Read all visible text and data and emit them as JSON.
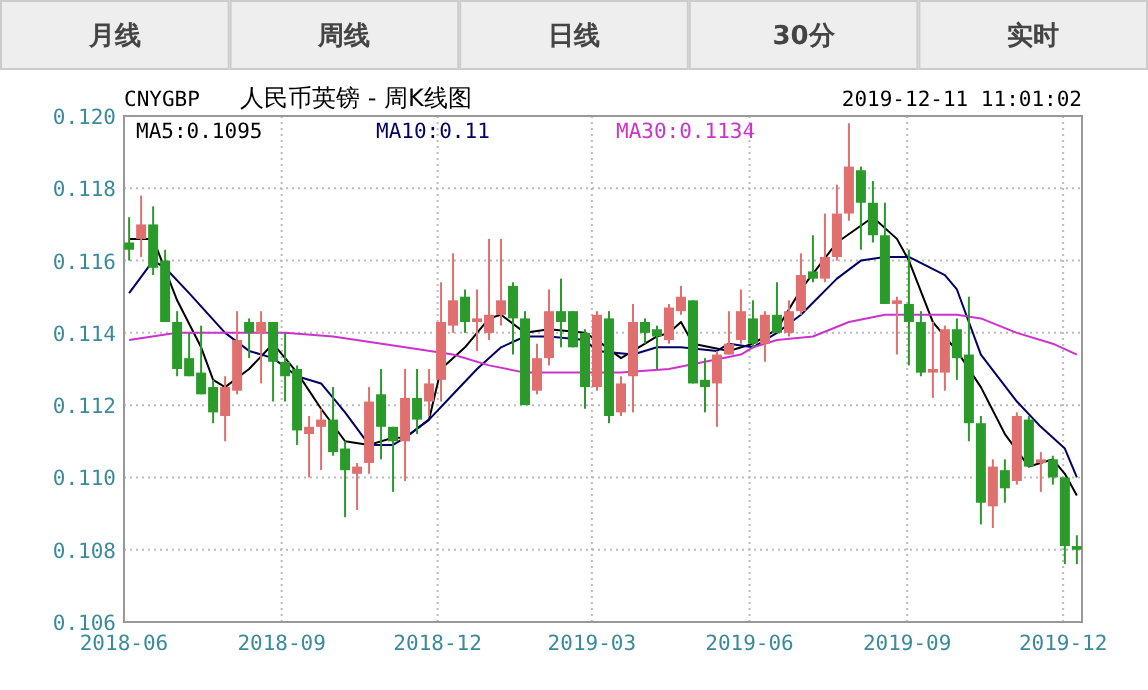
{
  "chart_data": {
    "type": "candlestick",
    "title": "人民币英镑 - 周K线图",
    "annotations": [
      "CNYGBP",
      "2019-12-11 11:01:02",
      "月线",
      "周线",
      "日线",
      "30分",
      "实时"
    ],
    "xlim": [
      "2018-06-01",
      "2019-12-12"
    ],
    "xticks": [
      {
        "value": "2018-06-01",
        "label": "2018-06"
      },
      {
        "value": "2018-09-01",
        "label": "2018-09"
      },
      {
        "value": "2018-12-01",
        "label": "2018-12"
      },
      {
        "value": "2019-03-01",
        "label": "2019-03"
      },
      {
        "value": "2019-06-01",
        "label": "2019-06"
      },
      {
        "value": "2019-09-01",
        "label": "2019-09"
      },
      {
        "value": "2019-12-01",
        "label": "2019-12"
      }
    ],
    "ylim": [
      0.106,
      0.12
    ],
    "yticks": [
      0.106,
      0.108,
      {
        "value": 0.11,
        "label": "0.110"
      },
      0.112,
      0.114,
      0.116,
      0.118,
      {
        "value": 0.12,
        "label": "0.120"
      }
    ],
    "grid": true,
    "legend": "top",
    "x": [
      "2018-06-04",
      "2018-06-11",
      "2018-06-18",
      "2018-06-25",
      "2018-07-02",
      "2018-07-09",
      "2018-07-16",
      "2018-07-23",
      "2018-07-30",
      "2018-08-06",
      "2018-08-13",
      "2018-08-20",
      "2018-08-27",
      "2018-09-03",
      "2018-09-10",
      "2018-09-17",
      "2018-09-24",
      "2018-10-01",
      "2018-10-08",
      "2018-10-15",
      "2018-10-22",
      "2018-10-29",
      "2018-11-05",
      "2018-11-12",
      "2018-11-19",
      "2018-11-26",
      "2018-12-03",
      "2018-12-10",
      "2018-12-17",
      "2018-12-24",
      "2018-12-31",
      "2019-01-07",
      "2019-01-14",
      "2019-01-21",
      "2019-01-28",
      "2019-02-04",
      "2019-02-11",
      "2019-02-18",
      "2019-02-25",
      "2019-03-04",
      "2019-03-11",
      "2019-03-18",
      "2019-03-25",
      "2019-04-01",
      "2019-04-08",
      "2019-04-15",
      "2019-04-22",
      "2019-04-29",
      "2019-05-06",
      "2019-05-13",
      "2019-05-20",
      "2019-05-27",
      "2019-06-03",
      "2019-06-10",
      "2019-06-17",
      "2019-06-24",
      "2019-07-01",
      "2019-07-08",
      "2019-07-15",
      "2019-07-22",
      "2019-07-29",
      "2019-08-05",
      "2019-08-12",
      "2019-08-19",
      "2019-08-26",
      "2019-09-02",
      "2019-09-09",
      "2019-09-16",
      "2019-09-23",
      "2019-09-30",
      "2019-10-07",
      "2019-10-14",
      "2019-10-21",
      "2019-10-28",
      "2019-11-04",
      "2019-11-11",
      "2019-11-18",
      "2019-11-25",
      "2019-12-02",
      "2019-12-09"
    ],
    "ohlc": [
      [
        0.1165,
        0.1172,
        0.116,
        0.1163
      ],
      [
        0.1166,
        0.1178,
        0.1161,
        0.117
      ],
      [
        0.117,
        0.1175,
        0.1156,
        0.1158
      ],
      [
        0.116,
        0.1163,
        0.1143,
        0.1143
      ],
      [
        0.1143,
        0.1146,
        0.1128,
        0.113
      ],
      [
        0.1133,
        0.114,
        0.1128,
        0.1128
      ],
      [
        0.1129,
        0.1142,
        0.1123,
        0.1123
      ],
      [
        0.1125,
        0.1127,
        0.1115,
        0.1118
      ],
      [
        0.1117,
        0.1128,
        0.111,
        0.1125
      ],
      [
        0.1124,
        0.1146,
        0.1123,
        0.1138
      ],
      [
        0.1143,
        0.1144,
        0.1133,
        0.114
      ],
      [
        0.114,
        0.1146,
        0.1126,
        0.1143
      ],
      [
        0.1143,
        0.1143,
        0.1121,
        0.1132
      ],
      [
        0.1132,
        0.114,
        0.1121,
        0.1128
      ],
      [
        0.113,
        0.1131,
        0.1109,
        0.1113
      ],
      [
        0.1112,
        0.1117,
        0.11,
        0.1114
      ],
      [
        0.1114,
        0.1119,
        0.1102,
        0.1116
      ],
      [
        0.1116,
        0.1125,
        0.1106,
        0.1107
      ],
      [
        0.1108,
        0.111,
        0.1089,
        0.1102
      ],
      [
        0.1101,
        0.1104,
        0.1091,
        0.1103
      ],
      [
        0.1104,
        0.1125,
        0.1101,
        0.1121
      ],
      [
        0.1123,
        0.113,
        0.1105,
        0.1114
      ],
      [
        0.1114,
        0.1114,
        0.1096,
        0.111
      ],
      [
        0.111,
        0.113,
        0.1099,
        0.1122
      ],
      [
        0.1122,
        0.113,
        0.1112,
        0.1116
      ],
      [
        0.1121,
        0.113,
        0.1117,
        0.1126
      ],
      [
        0.1127,
        0.1154,
        0.1121,
        0.1143
      ],
      [
        0.1142,
        0.1162,
        0.114,
        0.1149
      ],
      [
        0.115,
        0.1152,
        0.114,
        0.1143
      ],
      [
        0.1143,
        0.1152,
        0.1135,
        0.1144
      ],
      [
        0.114,
        0.1166,
        0.1138,
        0.1145
      ],
      [
        0.1145,
        0.1166,
        0.1142,
        0.1149
      ],
      [
        0.1153,
        0.1154,
        0.1134,
        0.1144
      ],
      [
        0.1144,
        0.1146,
        0.112,
        0.112
      ],
      [
        0.1124,
        0.1137,
        0.1123,
        0.1133
      ],
      [
        0.1133,
        0.1152,
        0.1131,
        0.1146
      ],
      [
        0.1146,
        0.1155,
        0.1136,
        0.1143
      ],
      [
        0.1146,
        0.1146,
        0.1136,
        0.1136
      ],
      [
        0.114,
        0.1141,
        0.1119,
        0.1125
      ],
      [
        0.1125,
        0.1146,
        0.1124,
        0.1145
      ],
      [
        0.1144,
        0.1146,
        0.1115,
        0.1117
      ],
      [
        0.1118,
        0.1128,
        0.1117,
        0.1126
      ],
      [
        0.1128,
        0.1148,
        0.1118,
        0.1143
      ],
      [
        0.1143,
        0.1144,
        0.1137,
        0.114
      ],
      [
        0.1141,
        0.1142,
        0.113,
        0.1139
      ],
      [
        0.1138,
        0.1148,
        0.1137,
        0.1147
      ],
      [
        0.1146,
        0.1153,
        0.1145,
        0.115
      ],
      [
        0.1149,
        0.1149,
        0.1126,
        0.1126
      ],
      [
        0.1127,
        0.1133,
        0.1118,
        0.1125
      ],
      [
        0.1126,
        0.1135,
        0.1114,
        0.1134
      ],
      [
        0.1134,
        0.1146,
        0.1134,
        0.1137
      ],
      [
        0.1138,
        0.1152,
        0.1137,
        0.1146
      ],
      [
        0.1144,
        0.1149,
        0.1136,
        0.1137
      ],
      [
        0.1137,
        0.1146,
        0.1132,
        0.1145
      ],
      [
        0.1145,
        0.1154,
        0.114,
        0.114
      ],
      [
        0.114,
        0.1149,
        0.1139,
        0.1146
      ],
      [
        0.1146,
        0.1162,
        0.1145,
        0.1156
      ],
      [
        0.1157,
        0.1167,
        0.1154,
        0.1155
      ],
      [
        0.1155,
        0.1173,
        0.1154,
        0.1161
      ],
      [
        0.1161,
        0.1181,
        0.116,
        0.1173
      ],
      [
        0.1173,
        0.1198,
        0.1171,
        0.1186
      ],
      [
        0.1185,
        0.1186,
        0.1163,
        0.1176
      ],
      [
        0.1176,
        0.1182,
        0.1165,
        0.1167
      ],
      [
        0.1167,
        0.1176,
        0.1148,
        0.1148
      ],
      [
        0.1148,
        0.115,
        0.1134,
        0.1149
      ],
      [
        0.1148,
        0.1163,
        0.1131,
        0.1143
      ],
      [
        0.1143,
        0.1146,
        0.1128,
        0.1129
      ],
      [
        0.1129,
        0.1143,
        0.1122,
        0.113
      ],
      [
        0.1129,
        0.1142,
        0.1124,
        0.1141
      ],
      [
        0.1141,
        0.1144,
        0.1127,
        0.1133
      ],
      [
        0.1134,
        0.115,
        0.111,
        0.1115
      ],
      [
        0.1115,
        0.1117,
        0.1087,
        0.1093
      ],
      [
        0.1092,
        0.1105,
        0.1086,
        0.1103
      ],
      [
        0.1102,
        0.1105,
        0.1093,
        0.1097
      ],
      [
        0.1099,
        0.1118,
        0.1098,
        0.1117
      ],
      [
        0.1116,
        0.1117,
        0.1103,
        0.1103
      ],
      [
        0.1104,
        0.1107,
        0.1096,
        0.1105
      ],
      [
        0.1105,
        0.1106,
        0.1098,
        0.11
      ],
      [
        0.11,
        0.11,
        0.1076,
        0.1081
      ],
      [
        0.1081,
        0.1084,
        0.1076,
        0.108
      ]
    ],
    "colors": [
      "#2a9a2a",
      "#e07070",
      "#2a9a2a",
      "#2a9a2a",
      "#2a9a2a",
      "#2a9a2a",
      "#2a9a2a",
      "#2a9a2a",
      "#e07070",
      "#e07070",
      "#2a9a2a",
      "#e07070",
      "#2a9a2a",
      "#2a9a2a",
      "#2a9a2a",
      "#e07070",
      "#e07070",
      "#2a9a2a",
      "#2a9a2a",
      "#e07070",
      "#e07070",
      "#2a9a2a",
      "#2a9a2a",
      "#e07070",
      "#2a9a2a",
      "#e07070",
      "#e07070",
      "#e07070",
      "#2a9a2a",
      "#e07070",
      "#e07070",
      "#e07070",
      "#2a9a2a",
      "#2a9a2a",
      "#e07070",
      "#e07070",
      "#2a9a2a",
      "#2a9a2a",
      "#2a9a2a",
      "#e07070",
      "#2a9a2a",
      "#e07070",
      "#e07070",
      "#2a9a2a",
      "#2a9a2a",
      "#e07070",
      "#e07070",
      "#2a9a2a",
      "#2a9a2a",
      "#e07070",
      "#e07070",
      "#e07070",
      "#2a9a2a",
      "#e07070",
      "#2a9a2a",
      "#e07070",
      "#e07070",
      "#2a9a2a",
      "#e07070",
      "#e07070",
      "#e07070",
      "#2a9a2a",
      "#2a9a2a",
      "#2a9a2a",
      "#e07070",
      "#2a9a2a",
      "#2a9a2a",
      "#e07070",
      "#e07070",
      "#2a9a2a",
      "#2a9a2a",
      "#2a9a2a",
      "#e07070",
      "#2a9a2a",
      "#e07070",
      "#2a9a2a",
      "#e07070",
      "#2a9a2a",
      "#2a9a2a",
      "#2a9a2a"
    ],
    "series": [
      {
        "type": "line",
        "name": "MA5:0.1095",
        "color": "#000000",
        "x": [
          "2018-06-04",
          "2018-06-18",
          "2018-07-02",
          "2018-07-16",
          "2018-07-23",
          "2018-07-30",
          "2018-08-13",
          "2018-08-27",
          "2018-09-10",
          "2018-09-24",
          "2018-10-08",
          "2018-10-22",
          "2018-11-05",
          "2018-11-12",
          "2018-11-26",
          "2018-12-03",
          "2018-12-17",
          "2018-12-31",
          "2019-01-07",
          "2019-01-21",
          "2019-02-04",
          "2019-02-25",
          "2019-03-04",
          "2019-03-18",
          "2019-04-01",
          "2019-04-08",
          "2019-04-15",
          "2019-04-22",
          "2019-04-29",
          "2019-05-20",
          "2019-06-03",
          "2019-06-17",
          "2019-07-01",
          "2019-07-22",
          "2019-08-12",
          "2019-08-26",
          "2019-09-02",
          "2019-09-16",
          "2019-09-30",
          "2019-10-14",
          "2019-10-28",
          "2019-11-11",
          "2019-11-25",
          "2019-12-02",
          "2019-12-09"
        ],
        "values": [
          0.1166,
          0.1166,
          0.1149,
          0.1136,
          0.1127,
          0.1125,
          0.113,
          0.1137,
          0.1129,
          0.1119,
          0.111,
          0.1109,
          0.1111,
          0.1111,
          0.1116,
          0.113,
          0.1136,
          0.1144,
          0.1145,
          0.114,
          0.1141,
          0.114,
          0.1138,
          0.1133,
          0.1137,
          0.1139,
          0.114,
          0.1143,
          0.1137,
          0.1135,
          0.1137,
          0.1141,
          0.1152,
          0.1165,
          0.1172,
          0.1166,
          0.116,
          0.1143,
          0.1135,
          0.1125,
          0.1112,
          0.1103,
          0.1105,
          0.1101,
          0.1095
        ]
      },
      {
        "type": "line",
        "name": "MA10:0.11",
        "color": "#000066",
        "x": [
          "2018-06-04",
          "2018-06-18",
          "2018-06-25",
          "2018-07-09",
          "2018-07-30",
          "2018-08-13",
          "2018-08-27",
          "2018-09-10",
          "2018-09-24",
          "2018-10-08",
          "2018-10-22",
          "2018-11-05",
          "2018-11-12",
          "2018-11-26",
          "2018-12-10",
          "2018-12-24",
          "2019-01-07",
          "2019-01-21",
          "2019-02-04",
          "2019-02-25",
          "2019-03-04",
          "2019-03-25",
          "2019-04-08",
          "2019-04-22",
          "2019-05-13",
          "2019-05-20",
          "2019-06-03",
          "2019-06-17",
          "2019-07-01",
          "2019-07-22",
          "2019-08-05",
          "2019-08-19",
          "2019-09-02",
          "2019-09-23",
          "2019-09-30",
          "2019-10-14",
          "2019-11-04",
          "2019-11-18",
          "2019-12-02",
          "2019-12-09"
        ],
        "values": [
          0.1151,
          0.116,
          0.1158,
          0.1151,
          0.114,
          0.1135,
          0.1133,
          0.1128,
          0.1126,
          0.1118,
          0.1109,
          0.1109,
          0.1111,
          0.1116,
          0.1123,
          0.113,
          0.1136,
          0.1139,
          0.1139,
          0.1138,
          0.1135,
          0.1134,
          0.1136,
          0.1136,
          0.1135,
          0.1137,
          0.1136,
          0.114,
          0.1145,
          0.1155,
          0.116,
          0.1161,
          0.1161,
          0.1156,
          0.1152,
          0.1134,
          0.1121,
          0.1114,
          0.1108,
          0.11
        ]
      },
      {
        "type": "line",
        "name": "MA30:0.1134",
        "color": "#cc33cc",
        "x": [
          "2018-06-04",
          "2018-07-02",
          "2018-08-06",
          "2018-09-03",
          "2018-10-01",
          "2018-11-12",
          "2018-12-10",
          "2018-12-31",
          "2019-01-21",
          "2019-02-18",
          "2019-03-18",
          "2019-04-15",
          "2019-05-06",
          "2019-05-27",
          "2019-06-03",
          "2019-06-17",
          "2019-07-08",
          "2019-07-29",
          "2019-08-19",
          "2019-09-09",
          "2019-09-30",
          "2019-10-14",
          "2019-11-04",
          "2019-11-25",
          "2019-12-09"
        ],
        "values": [
          0.1138,
          0.114,
          0.114,
          0.114,
          0.1139,
          0.1136,
          0.1134,
          0.1131,
          0.1129,
          0.1129,
          0.1129,
          0.113,
          0.1132,
          0.1134,
          0.1136,
          0.1138,
          0.1139,
          0.1143,
          0.1145,
          0.1145,
          0.1145,
          0.1144,
          0.114,
          0.1137,
          0.1134
        ]
      }
    ]
  }
}
